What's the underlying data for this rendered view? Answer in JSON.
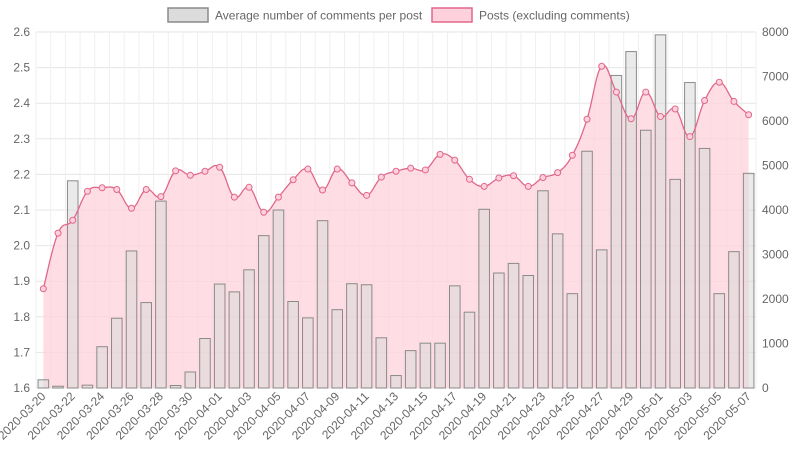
{
  "chart_data": {
    "type": "bar+line",
    "colors": {
      "bar_fill": "#d9d9d9",
      "bar_border": "#8a8a8a",
      "line": "#e0678c",
      "area_fill": "#ffd1dc",
      "grid": "#e5e5e5",
      "tick_text": "#666666"
    },
    "legend": {
      "position": "top",
      "items": [
        {
          "label": "Average number of comments per post",
          "kind": "bar"
        },
        {
          "label": "Posts (excluding comments)",
          "kind": "area"
        }
      ]
    },
    "y_left": {
      "min": 1.6,
      "max": 2.6,
      "step": 0.1,
      "ticks": [
        "1.6",
        "1.7",
        "1.8",
        "1.9",
        "2.0",
        "2.1",
        "2.2",
        "2.3",
        "2.4",
        "2.5",
        "2.6"
      ]
    },
    "y_right": {
      "min": 0,
      "max": 8000,
      "step": 1000,
      "ticks": [
        "0",
        "1000",
        "2000",
        "3000",
        "4000",
        "5000",
        "6000",
        "7000",
        "8000"
      ]
    },
    "dates": [
      "2020-03-20",
      "2020-03-21",
      "2020-03-22",
      "2020-03-23",
      "2020-03-24",
      "2020-03-25",
      "2020-03-26",
      "2020-03-27",
      "2020-03-28",
      "2020-03-29",
      "2020-03-30",
      "2020-03-31",
      "2020-04-01",
      "2020-04-02",
      "2020-04-03",
      "2020-04-04",
      "2020-04-05",
      "2020-04-06",
      "2020-04-07",
      "2020-04-08",
      "2020-04-09",
      "2020-04-10",
      "2020-04-11",
      "2020-04-12",
      "2020-04-13",
      "2020-04-14",
      "2020-04-15",
      "2020-04-16",
      "2020-04-17",
      "2020-04-18",
      "2020-04-19",
      "2020-04-20",
      "2020-04-21",
      "2020-04-22",
      "2020-04-23",
      "2020-04-24",
      "2020-04-25",
      "2020-04-26",
      "2020-04-27",
      "2020-04-28",
      "2020-04-29",
      "2020-04-30",
      "2020-05-01",
      "2020-05-02",
      "2020-05-03",
      "2020-05-04",
      "2020-05-05",
      "2020-05-06",
      "2020-05-07"
    ],
    "x_tick_labels": [
      "2020-03-20",
      "2020-03-22",
      "2020-03-24",
      "2020-03-26",
      "2020-03-28",
      "2020-03-30",
      "2020-04-01",
      "2020-04-03",
      "2020-04-05",
      "2020-04-07",
      "2020-04-09",
      "2020-04-11",
      "2020-04-13",
      "2020-04-15",
      "2020-04-17",
      "2020-04-19",
      "2020-04-21",
      "2020-04-23",
      "2020-04-25",
      "2020-04-27",
      "2020-04-29",
      "2020-05-01",
      "2020-05-03",
      "2020-05-05",
      "2020-05-07"
    ],
    "series": [
      {
        "name": "Average number of comments per post",
        "type": "bar",
        "axis": "left",
        "values": [
          1.623,
          1.605,
          2.182,
          1.608,
          1.716,
          1.796,
          1.985,
          1.84,
          2.125,
          1.607,
          1.645,
          1.739,
          1.892,
          1.87,
          1.932,
          2.028,
          2.1,
          1.843,
          1.797,
          2.07,
          1.82,
          1.893,
          1.89,
          1.741,
          1.635,
          1.705,
          1.726,
          1.726,
          1.887,
          1.813,
          2.102,
          1.923,
          1.95,
          1.916,
          2.154,
          2.033,
          1.865,
          2.265,
          1.988,
          2.478,
          2.545,
          2.324,
          2.592,
          2.186,
          2.458,
          2.273,
          1.865,
          1.983,
          2.203
        ]
      },
      {
        "name": "Posts (excluding comments)",
        "type": "area",
        "axis": "right",
        "values": [
          2230,
          3480,
          3770,
          4420,
          4500,
          4460,
          4040,
          4460,
          4300,
          4880,
          4780,
          4870,
          4960,
          4290,
          4510,
          3950,
          4290,
          4680,
          4920,
          4450,
          4920,
          4610,
          4330,
          4740,
          4870,
          4940,
          4900,
          5250,
          5120,
          4690,
          4530,
          4720,
          4770,
          4530,
          4730,
          4840,
          5230,
          6040,
          7230,
          6650,
          6050,
          6650,
          6100,
          6270,
          5650,
          6460,
          6870,
          6440,
          6140
        ]
      }
    ]
  }
}
